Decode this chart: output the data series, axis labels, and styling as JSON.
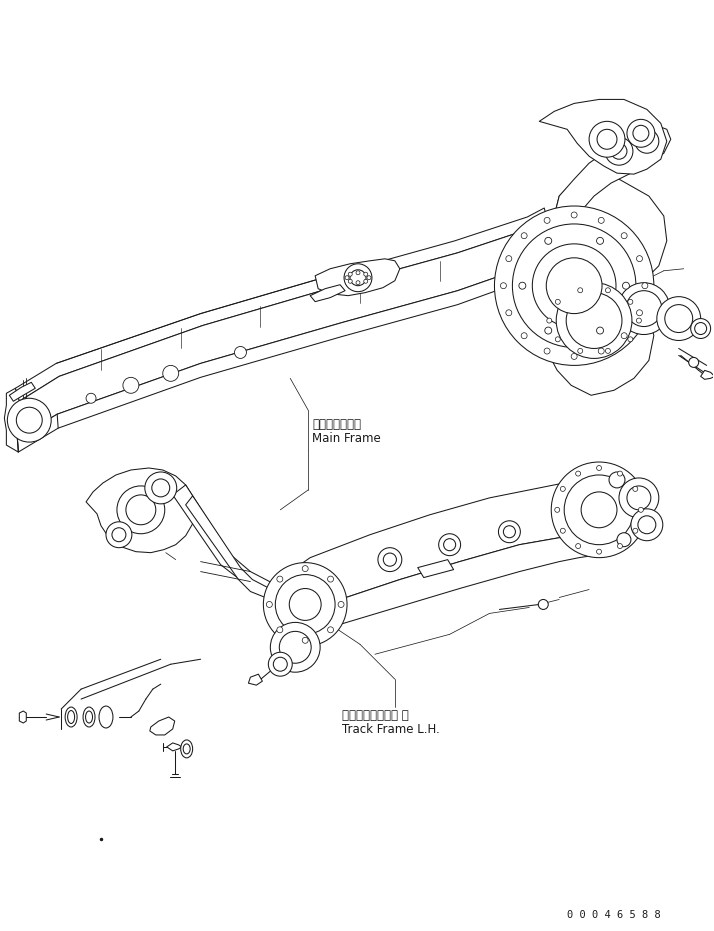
{
  "bg_color": "#ffffff",
  "line_color": "#1a1a1a",
  "label_main_frame_jp": "メインフレーム",
  "label_main_frame_en": "Main Frame",
  "label_track_frame_jp": "トラックフレーム 左",
  "label_track_frame_en": "Track Frame L.H.",
  "part_number": "0 0 0 4 6 5 8 8",
  "figsize": [
    7.14,
    9.31
  ],
  "dpi": 100
}
